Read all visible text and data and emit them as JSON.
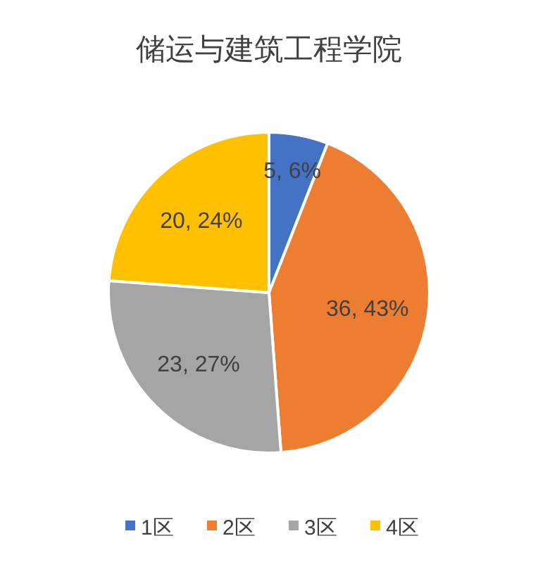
{
  "chart_data": {
    "type": "pie",
    "title": "储运与建筑工程学院",
    "categories": [
      "1区",
      "2区",
      "3区",
      "4区"
    ],
    "values": [
      5,
      36,
      23,
      20
    ],
    "colors": [
      "#4472c4",
      "#ed7d31",
      "#a5a5a5",
      "#ffc000"
    ],
    "value_labels": [
      "5, 6%",
      "36, 43%",
      "23, 27%",
      "20, 24%"
    ],
    "legend": "bottom"
  }
}
